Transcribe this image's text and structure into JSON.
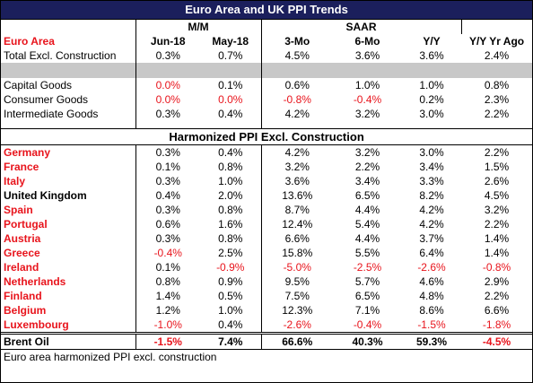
{
  "title": "Euro Area and UK PPI Trends",
  "group_headers": [
    "M/M",
    "SAAR"
  ],
  "header_label": "Euro Area",
  "columns": [
    "Jun-18",
    "May-18",
    "3-Mo",
    "6-Mo",
    "Y/Y",
    "Y/Y Yr Ago"
  ],
  "total": {
    "label": "Total Excl. Construction",
    "cells": [
      "0.3%",
      "0.7%",
      "4.5%",
      "3.6%",
      "3.6%",
      "2.4%"
    ]
  },
  "goods": [
    {
      "label": "Capital Goods",
      "cells": [
        "0.0%",
        "0.1%",
        "0.6%",
        "1.0%",
        "1.0%",
        "0.8%"
      ]
    },
    {
      "label": "Consumer Goods",
      "cells": [
        "0.0%",
        "0.0%",
        "-0.8%",
        "-0.4%",
        "0.2%",
        "2.3%"
      ]
    },
    {
      "label": "Intermediate Goods",
      "cells": [
        "0.3%",
        "0.4%",
        "4.2%",
        "3.2%",
        "3.0%",
        "2.2%"
      ]
    }
  ],
  "section_title": "Harmonized PPI Excl. Construction",
  "countries": [
    {
      "label": "Germany",
      "color": "#e8141c",
      "cells": [
        "0.3%",
        "0.4%",
        "4.2%",
        "3.2%",
        "3.0%",
        "2.2%"
      ]
    },
    {
      "label": "France",
      "color": "#e8141c",
      "cells": [
        "0.1%",
        "0.8%",
        "3.2%",
        "2.2%",
        "3.4%",
        "1.5%"
      ]
    },
    {
      "label": "Italy",
      "color": "#e8141c",
      "cells": [
        "0.3%",
        "1.0%",
        "3.6%",
        "3.4%",
        "3.3%",
        "2.6%"
      ]
    },
    {
      "label": "United Kingdom",
      "color": "#000000",
      "cells": [
        "0.4%",
        "2.0%",
        "13.6%",
        "6.5%",
        "8.2%",
        "4.5%"
      ]
    },
    {
      "label": "Spain",
      "color": "#e8141c",
      "cells": [
        "0.3%",
        "0.8%",
        "8.7%",
        "4.4%",
        "4.2%",
        "3.2%"
      ]
    },
    {
      "label": "Portugal",
      "color": "#e8141c",
      "cells": [
        "0.6%",
        "1.6%",
        "12.4%",
        "5.4%",
        "4.2%",
        "2.2%"
      ]
    },
    {
      "label": "Austria",
      "color": "#e8141c",
      "cells": [
        "0.3%",
        "0.8%",
        "6.6%",
        "4.4%",
        "3.7%",
        "1.4%"
      ]
    },
    {
      "label": "Greece",
      "color": "#e8141c",
      "cells": [
        "-0.4%",
        "2.5%",
        "15.8%",
        "5.5%",
        "6.4%",
        "1.4%"
      ]
    },
    {
      "label": "Ireland",
      "color": "#e8141c",
      "cells": [
        "0.1%",
        "-0.9%",
        "-5.0%",
        "-2.5%",
        "-2.6%",
        "-0.8%"
      ]
    },
    {
      "label": "Netherlands",
      "color": "#e8141c",
      "cells": [
        "0.8%",
        "0.9%",
        "9.5%",
        "5.7%",
        "4.6%",
        "2.9%"
      ]
    },
    {
      "label": "Finland",
      "color": "#e8141c",
      "cells": [
        "1.4%",
        "0.5%",
        "7.5%",
        "6.5%",
        "4.8%",
        "2.2%"
      ]
    },
    {
      "label": "Belgium",
      "color": "#e8141c",
      "cells": [
        "1.2%",
        "1.0%",
        "12.3%",
        "7.1%",
        "8.6%",
        "6.6%"
      ]
    },
    {
      "label": "Luxembourg",
      "color": "#e8141c",
      "cells": [
        "-1.0%",
        "0.4%",
        "-2.6%",
        "-0.4%",
        "-1.5%",
        "-1.8%"
      ]
    }
  ],
  "brent": {
    "label": "Brent Oil",
    "cells": [
      "-1.5%",
      "7.4%",
      "66.6%",
      "40.3%",
      "59.3%",
      "-4.5%"
    ]
  },
  "footer": "Euro area harmonized PPI excl. construction"
}
